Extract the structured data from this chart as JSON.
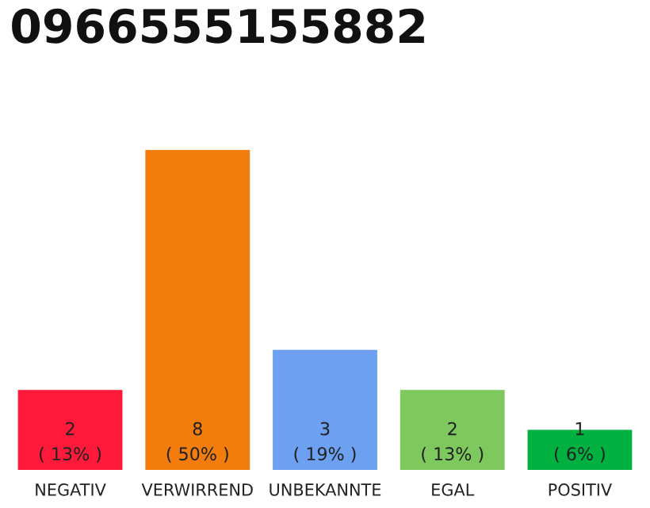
{
  "chart_data": {
    "type": "bar",
    "title": "0966555155882",
    "categories": [
      "NEGATIV",
      "VERWIRREND",
      "UNBEKANNTE",
      "EGAL",
      "POSITIV"
    ],
    "values": [
      2,
      8,
      3,
      2,
      1
    ],
    "colors": [
      "#ff1a3c",
      "#f27d0c",
      "#6da0f0",
      "#7dc95e",
      "#00b140"
    ],
    "value_labels": [
      "2\n( 13% )",
      "8\n( 50% )",
      "3\n( 19% )",
      "2\n( 13% )",
      "1\n( 6% )"
    ],
    "grid": false,
    "legend": false
  }
}
